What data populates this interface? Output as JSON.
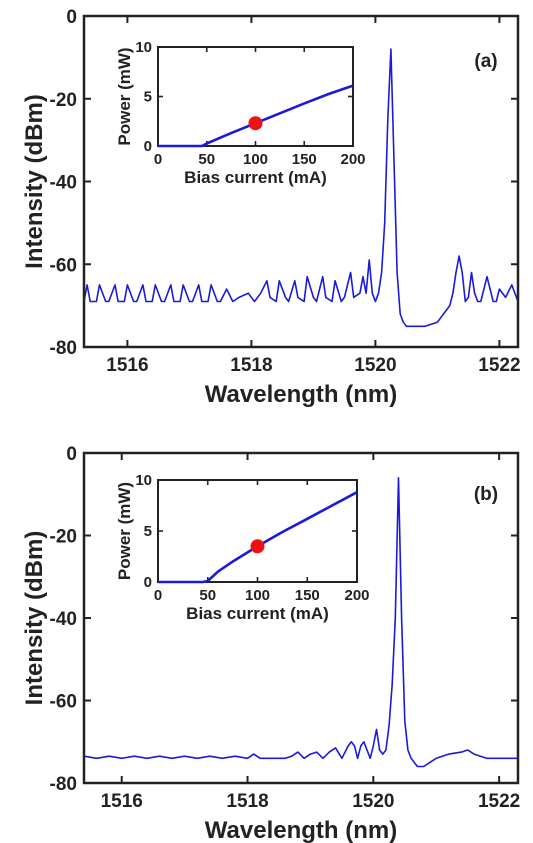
{
  "colors": {
    "trace": "#1a1adb",
    "marker": "#ee1111",
    "axis": "#222222"
  },
  "chart_data": [
    {
      "panel": "(a)",
      "type": "line",
      "xlabel": "Wavelength (nm)",
      "ylabel": "Intensity (dBm)",
      "xlim": [
        1515.3,
        1522.3
      ],
      "ylim": [
        -80,
        0
      ],
      "xticks": [
        1516,
        1518,
        1520,
        1522
      ],
      "yticks": [
        0,
        -20,
        -40,
        -60,
        -80
      ],
      "grid": false,
      "series": [
        {
          "x": [
            1515.3,
            1515.35,
            1515.4,
            1515.5,
            1515.55,
            1515.65,
            1515.7,
            1515.8,
            1515.85,
            1515.95,
            1516.0,
            1516.1,
            1516.15,
            1516.25,
            1516.3,
            1516.4,
            1516.45,
            1516.55,
            1516.6,
            1516.7,
            1516.75,
            1516.85,
            1516.9,
            1517.0,
            1517.05,
            1517.15,
            1517.2,
            1517.3,
            1517.35,
            1517.45,
            1517.5,
            1517.6,
            1517.7,
            1517.8,
            1517.95,
            1518.05,
            1518.15,
            1518.25,
            1518.3,
            1518.4,
            1518.45,
            1518.55,
            1518.6,
            1518.7,
            1518.75,
            1518.85,
            1518.9,
            1519.0,
            1519.05,
            1519.15,
            1519.2,
            1519.3,
            1519.35,
            1519.45,
            1519.5,
            1519.6,
            1519.65,
            1519.75,
            1519.8,
            1519.85,
            1519.9,
            1519.95,
            1520.0,
            1520.05,
            1520.1,
            1520.15,
            1520.2,
            1520.25,
            1520.3,
            1520.35,
            1520.4,
            1520.45,
            1520.5,
            1520.6,
            1520.8,
            1521.0,
            1521.1,
            1521.2,
            1521.25,
            1521.3,
            1521.35,
            1521.4,
            1521.45,
            1521.5,
            1521.55,
            1521.6,
            1521.65,
            1521.7,
            1521.8,
            1521.85,
            1521.9,
            1521.95,
            1522.0,
            1522.1,
            1522.2,
            1522.3
          ],
          "y": [
            -69,
            -65,
            -69,
            -69,
            -65,
            -69,
            -69,
            -65,
            -69,
            -69,
            -65,
            -69,
            -69,
            -65,
            -69,
            -69,
            -65,
            -69,
            -69,
            -65,
            -69,
            -69,
            -65,
            -69,
            -69,
            -65,
            -69,
            -69,
            -65,
            -69,
            -69,
            -66,
            -69,
            -68,
            -67,
            -69,
            -67,
            -64,
            -68,
            -69,
            -64,
            -68,
            -69,
            -64,
            -68,
            -69,
            -63,
            -68,
            -69,
            -63,
            -68,
            -69,
            -64,
            -69,
            -68,
            -62,
            -68,
            -67,
            -63,
            -67,
            -59,
            -67,
            -69,
            -67,
            -62,
            -50,
            -25,
            -8,
            -35,
            -62,
            -72,
            -74,
            -75,
            -75,
            -75,
            -74,
            -72,
            -70,
            -67,
            -62,
            -58,
            -62,
            -69,
            -68,
            -62,
            -67,
            -69,
            -69,
            -63,
            -66,
            -69,
            -69,
            -66,
            -68,
            -65,
            -69
          ]
        }
      ],
      "inset": {
        "type": "line",
        "xlabel": "Bias current (mA)",
        "ylabel": "Power (mW)",
        "xlim": [
          0,
          200
        ],
        "ylim": [
          0,
          10
        ],
        "xticks": [
          0,
          50,
          100,
          150,
          200
        ],
        "yticks": [
          0,
          5,
          10
        ],
        "series": [
          {
            "x": [
              0,
              45,
              50,
              75,
              100,
              125,
              150,
              175,
              200
            ],
            "y": [
              0,
              0,
              0.25,
              1.3,
              2.3,
              3.3,
              4.3,
              5.25,
              6.1
            ]
          }
        ],
        "marker": {
          "x": 100,
          "y": 2.3
        }
      }
    },
    {
      "panel": "(b)",
      "type": "line",
      "xlabel": "Wavelength (nm)",
      "ylabel": "Intensity (dBm)",
      "xlim": [
        1515.4,
        1522.3
      ],
      "ylim": [
        -80,
        0
      ],
      "xticks": [
        1516,
        1518,
        1520,
        1522
      ],
      "yticks": [
        0,
        -20,
        -40,
        -60,
        -80
      ],
      "grid": false,
      "series": [
        {
          "x": [
            1515.4,
            1515.6,
            1515.8,
            1516.0,
            1516.2,
            1516.4,
            1516.6,
            1516.8,
            1517.0,
            1517.2,
            1517.4,
            1517.6,
            1517.8,
            1518.0,
            1518.1,
            1518.2,
            1518.4,
            1518.6,
            1518.7,
            1518.8,
            1518.9,
            1519.0,
            1519.1,
            1519.2,
            1519.3,
            1519.4,
            1519.5,
            1519.6,
            1519.65,
            1519.7,
            1519.75,
            1519.8,
            1519.85,
            1519.9,
            1519.95,
            1520.0,
            1520.05,
            1520.1,
            1520.15,
            1520.2,
            1520.25,
            1520.3,
            1520.35,
            1520.4,
            1520.45,
            1520.5,
            1520.55,
            1520.6,
            1520.7,
            1520.8,
            1520.9,
            1521.0,
            1521.2,
            1521.4,
            1521.5,
            1521.6,
            1521.8,
            1522.0,
            1522.3
          ],
          "y": [
            -73.5,
            -74,
            -73.5,
            -74,
            -73.5,
            -74,
            -73.5,
            -74,
            -73.5,
            -74,
            -73.5,
            -74,
            -73.5,
            -74,
            -73,
            -74,
            -74,
            -74,
            -73.5,
            -72.5,
            -74,
            -73,
            -72.5,
            -74,
            -72.5,
            -71.5,
            -74,
            -71,
            -70,
            -71,
            -74,
            -71,
            -70,
            -72,
            -74,
            -71,
            -67,
            -72,
            -73,
            -72,
            -66,
            -56,
            -40,
            -6,
            -40,
            -65,
            -72,
            -74,
            -76,
            -76,
            -75,
            -74,
            -73,
            -72.5,
            -72,
            -73,
            -74,
            -74,
            -74
          ]
        }
      ],
      "inset": {
        "type": "line",
        "xlabel": "Bias current (mA)",
        "ylabel": "Power (mW)",
        "xlim": [
          0,
          200
        ],
        "ylim": [
          0,
          10
        ],
        "xticks": [
          0,
          50,
          100,
          150,
          200
        ],
        "yticks": [
          0,
          5,
          10
        ],
        "series": [
          {
            "x": [
              0,
              45,
              50,
              60,
              75,
              100,
              125,
              150,
              175,
              200
            ],
            "y": [
              0,
              0,
              0.1,
              1.0,
              2.0,
              3.5,
              4.9,
              6.2,
              7.5,
              8.8
            ]
          }
        ],
        "marker": {
          "x": 100,
          "y": 3.5
        }
      }
    }
  ]
}
